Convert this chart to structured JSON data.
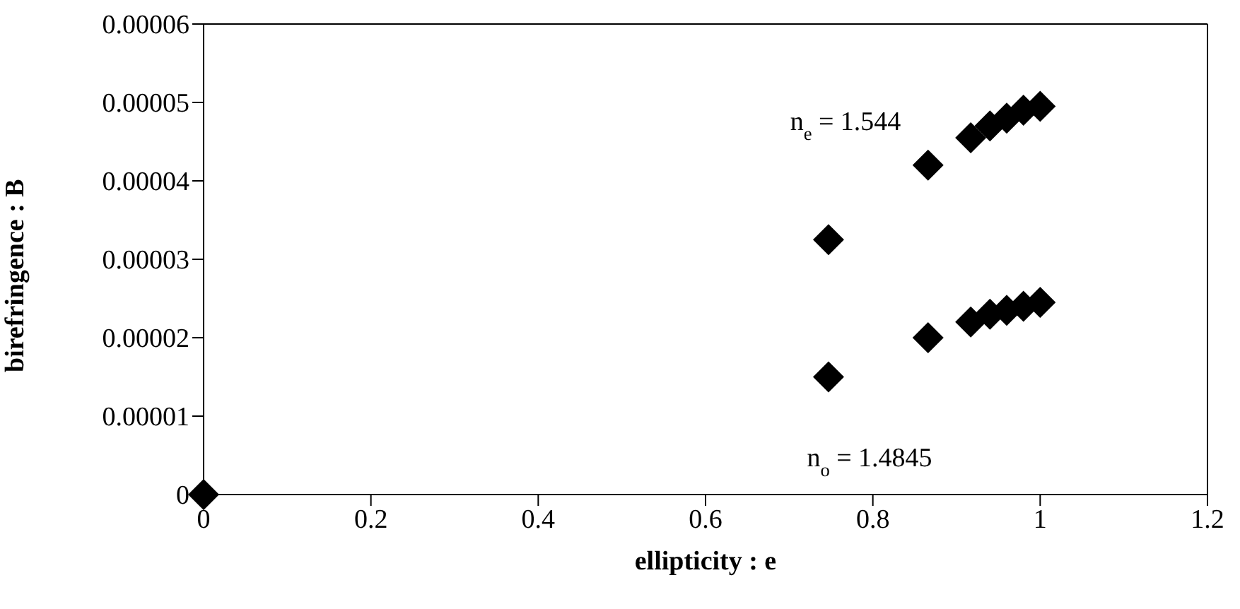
{
  "chart_data": {
    "type": "scatter",
    "xlabel": "ellipticity : e",
    "ylabel": "birefringence : B",
    "marker": "diamond",
    "xlim": [
      0,
      1.2
    ],
    "xticks": [
      0,
      0.2,
      0.4,
      0.6,
      0.8,
      1,
      1.2
    ],
    "ylim": [
      0,
      6e-05
    ],
    "yticks": [
      0,
      {
        "value": 1e-05,
        "label": "0.00001"
      },
      {
        "value": 2e-05,
        "label": "0.00002"
      },
      {
        "value": 3e-05,
        "label": "0.00003"
      },
      {
        "value": 4e-05,
        "label": "0.00004"
      },
      {
        "value": 5e-05,
        "label": "0.00005"
      },
      {
        "value": 6e-05,
        "label": "0.00006"
      }
    ],
    "series": [
      {
        "color": "#000000",
        "x": [
          0,
          0.747,
          0.866,
          0.917,
          0.94,
          0.96,
          0.98,
          1.0
        ],
        "values": [
          0,
          3.25e-05,
          4.2e-05,
          4.55e-05,
          4.7e-05,
          4.8e-05,
          4.9e-05,
          4.95e-05
        ]
      },
      {
        "color": "#000000",
        "x": [
          0.747,
          0.866,
          0.917,
          0.94,
          0.96,
          0.98,
          1.0
        ],
        "values": [
          1.5e-05,
          2e-05,
          2.2e-05,
          2.3e-05,
          2.35e-05,
          2.4e-05,
          2.45e-05
        ]
      }
    ],
    "annotations": [
      "n$_{e}$ = 1.544",
      "n$_{o}$ = 1.4845"
    ]
  }
}
